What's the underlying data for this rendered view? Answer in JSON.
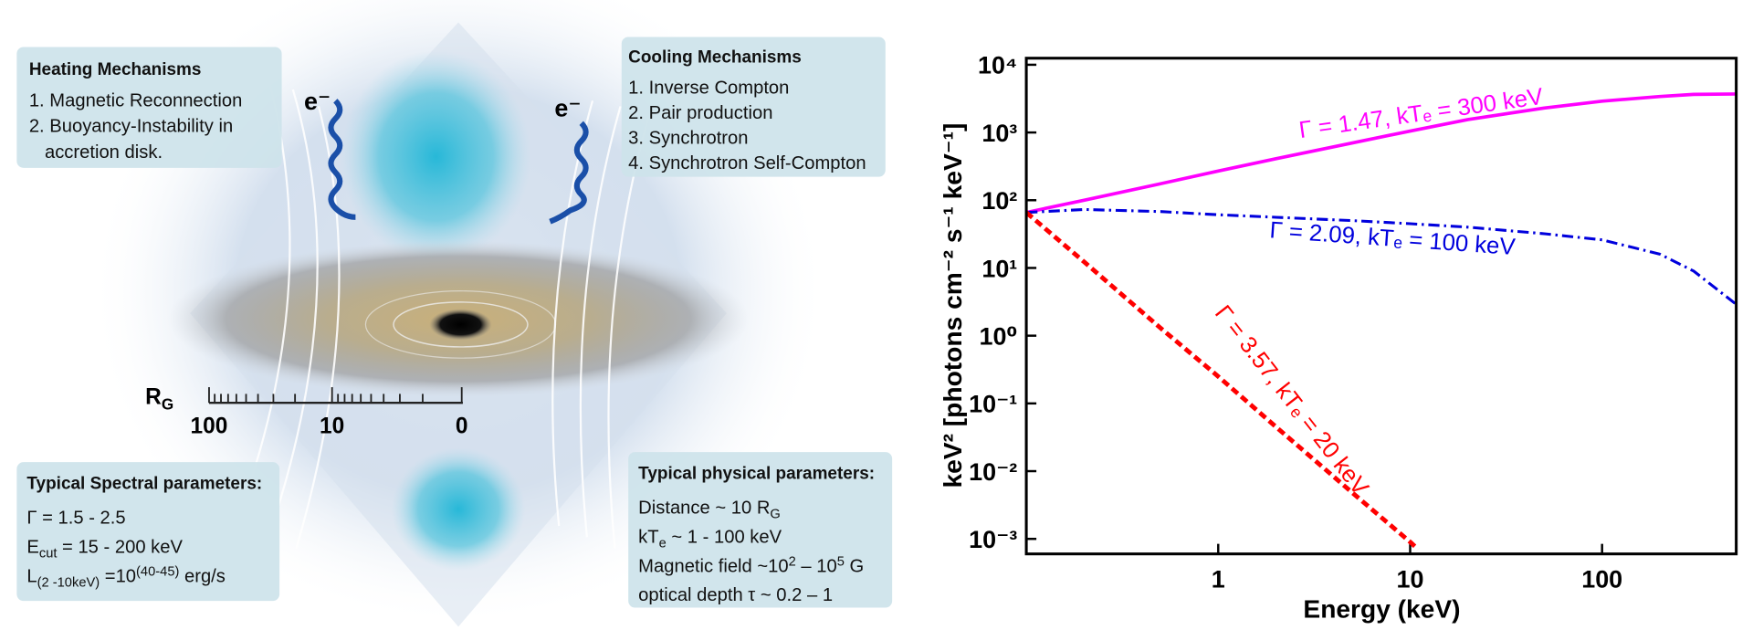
{
  "illustration": {
    "heating": {
      "title": "Heating Mechanisms",
      "lines": [
        [
          {
            "text": "1. Magnetic Reconnection"
          }
        ],
        [
          {
            "text": "2. Buoyancy-Instability in"
          }
        ],
        [
          {
            "text": "accretion disk."
          }
        ]
      ]
    },
    "cooling": {
      "title": "Cooling Mechanisms",
      "lines": [
        [
          {
            "text": "1. Inverse Compton"
          }
        ],
        [
          {
            "text": "2. Pair production"
          }
        ],
        [
          {
            "text": "3. Synchrotron"
          }
        ],
        [
          {
            "text": "4. Synchrotron Self-Compton"
          }
        ]
      ]
    },
    "spectral": {
      "title": "Typical Spectral parameters:",
      "lines": [
        [
          {
            "text": "Γ = 1.5 - 2.5"
          }
        ],
        [
          {
            "text": "E"
          },
          {
            "sub": "cut"
          },
          {
            "text": " = 15 - 200 keV"
          }
        ],
        [
          {
            "text": "L"
          },
          {
            "sub": "(2 -10keV)"
          },
          {
            "text": " =10"
          },
          {
            "sup": "(40-45)"
          },
          {
            "text": " erg/s"
          }
        ]
      ]
    },
    "physical": {
      "title": "Typical physical parameters:",
      "lines": [
        [
          {
            "text": "Distance ~ 10 R"
          },
          {
            "sub": "G"
          }
        ],
        [
          {
            "text": "kT"
          },
          {
            "sub": "e"
          },
          {
            "text": " ~ 1 - 100 keV"
          }
        ],
        [
          {
            "text": "Magnetic field ~10"
          },
          {
            "sup": "2"
          },
          {
            "text": " – 10"
          },
          {
            "sup": "5"
          },
          {
            "text": " G"
          }
        ],
        [
          {
            "text": "optical depth τ ~ 0.2 – 1"
          }
        ]
      ]
    },
    "scale": {
      "label": "R",
      "label_sub": "G",
      "ticks": [
        "100",
        "10",
        "0"
      ]
    },
    "electron_labels": [
      "e⁻",
      "e⁻"
    ]
  },
  "chart_data": {
    "type": "line",
    "xlabel": "Energy (keV)",
    "ylabel": "keV² [photons cm⁻² s⁻¹ keV⁻¹]",
    "xlog": true,
    "ylog": true,
    "xlim": [
      0.1,
      500
    ],
    "ylim": [
      0.0006,
      12500
    ],
    "xticks": [
      1,
      10,
      100
    ],
    "yticks": [
      {
        "value": 0.001,
        "label": "10⁻³"
      },
      {
        "value": 0.01,
        "label": "10⁻²"
      },
      {
        "value": 0.1,
        "label": "10⁻¹"
      },
      {
        "value": 1,
        "label": "10⁰"
      },
      {
        "value": 10,
        "label": "10¹"
      },
      {
        "value": 100,
        "label": "10²"
      },
      {
        "value": 1000,
        "label": "10³"
      },
      {
        "value": 10000,
        "label": "10⁴"
      }
    ],
    "grid": false,
    "series": [
      {
        "name": "Γ = 1.47, kTₑ = 300 keV",
        "color": "#ff00ff",
        "dash": "solid",
        "x": [
          0.1,
          0.2,
          0.5,
          1,
          2,
          5,
          10,
          20,
          50,
          100,
          200,
          300,
          500
        ],
        "values": [
          66,
          100,
          175,
          270,
          410,
          700,
          1050,
          1550,
          2300,
          2900,
          3400,
          3650,
          3700
        ]
      },
      {
        "name": "Γ = 2.09, kTₑ = 100 keV",
        "color": "#0000dd",
        "dash": "dashdot",
        "x": [
          0.1,
          0.2,
          0.5,
          1,
          2,
          5,
          10,
          20,
          50,
          100,
          200,
          300,
          500
        ],
        "values": [
          66,
          73,
          68,
          61,
          56,
          50,
          45,
          40,
          32,
          26,
          16,
          9,
          2.9
        ]
      },
      {
        "name": "Γ = 3.57, kTₑ = 20 keV",
        "color": "#ff0000",
        "dash": "dashed",
        "x": [
          0.1,
          0.2,
          0.5,
          1,
          2,
          5,
          10,
          11
        ],
        "values": [
          66,
          12.3,
          1.3,
          0.25,
          0.045,
          0.0048,
          0.0009,
          0.0007
        ]
      }
    ]
  }
}
